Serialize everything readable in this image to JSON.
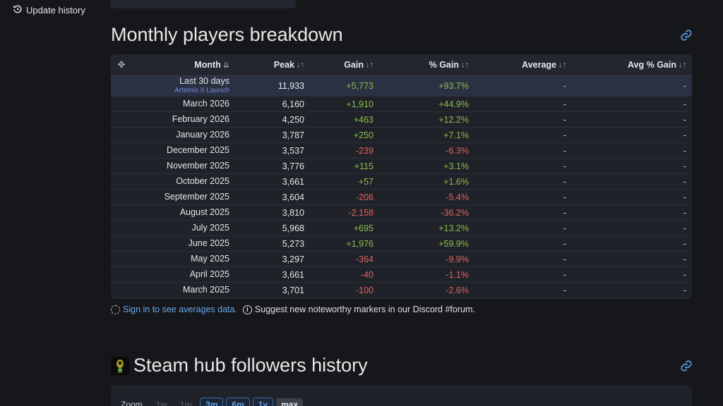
{
  "sidebar": {
    "update_history_label": "Update history"
  },
  "section1": {
    "title": "Monthly players breakdown",
    "columns": [
      "Month",
      "Peak",
      "Gain",
      "% Gain",
      "Average",
      "Avg % Gain"
    ],
    "rows": [
      {
        "month": "Last 30 days",
        "marker": "Artemis II Launch",
        "peak": "11,933",
        "gain": "+5,773",
        "pgain": "+93.7%",
        "avg": "-",
        "avgg": "-",
        "dir": "pos"
      },
      {
        "month": "March 2026",
        "peak": "6,160",
        "gain": "+1,910",
        "pgain": "+44.9%",
        "avg": "-",
        "avgg": "-",
        "dir": "pos"
      },
      {
        "month": "February 2026",
        "peak": "4,250",
        "gain": "+463",
        "pgain": "+12.2%",
        "avg": "-",
        "avgg": "-",
        "dir": "pos"
      },
      {
        "month": "January 2026",
        "peak": "3,787",
        "gain": "+250",
        "pgain": "+7.1%",
        "avg": "-",
        "avgg": "-",
        "dir": "pos"
      },
      {
        "month": "December 2025",
        "peak": "3,537",
        "gain": "-239",
        "pgain": "-6.3%",
        "avg": "-",
        "avgg": "-",
        "dir": "neg"
      },
      {
        "month": "November 2025",
        "peak": "3,776",
        "gain": "+115",
        "pgain": "+3.1%",
        "avg": "-",
        "avgg": "-",
        "dir": "pos"
      },
      {
        "month": "October 2025",
        "peak": "3,661",
        "gain": "+57",
        "pgain": "+1.6%",
        "avg": "-",
        "avgg": "-",
        "dir": "pos"
      },
      {
        "month": "September 2025",
        "peak": "3,604",
        "gain": "-206",
        "pgain": "-5.4%",
        "avg": "-",
        "avgg": "-",
        "dir": "neg"
      },
      {
        "month": "August 2025",
        "peak": "3,810",
        "gain": "-2,158",
        "pgain": "-36.2%",
        "avg": "-",
        "avgg": "-",
        "dir": "neg"
      },
      {
        "month": "July 2025",
        "peak": "5,968",
        "gain": "+695",
        "pgain": "+13.2%",
        "avg": "-",
        "avgg": "-",
        "dir": "pos"
      },
      {
        "month": "June 2025",
        "peak": "5,273",
        "gain": "+1,976",
        "pgain": "+59.9%",
        "avg": "-",
        "avgg": "-",
        "dir": "pos"
      },
      {
        "month": "May 2025",
        "peak": "3,297",
        "gain": "-364",
        "pgain": "-9.9%",
        "avg": "-",
        "avgg": "-",
        "dir": "neg"
      },
      {
        "month": "April 2025",
        "peak": "3,661",
        "gain": "-40",
        "pgain": "-1.1%",
        "avg": "-",
        "avgg": "-",
        "dir": "neg"
      },
      {
        "month": "March 2025",
        "peak": "3,701",
        "gain": "-100",
        "pgain": "-2.6%",
        "avg": "-",
        "avgg": "-",
        "dir": "neg"
      }
    ],
    "notes": {
      "signin_link": "Sign in to see averages data.",
      "suggest_text": "Suggest new noteworthy markers in our Discord #forum."
    }
  },
  "section2": {
    "title": "Steam hub followers history",
    "zoom_label": "Zoom",
    "zoom_buttons": [
      "1w",
      "1m",
      "3m",
      "6m",
      "1y",
      "max"
    ]
  },
  "colors": {
    "positive": "#8dbd4f",
    "negative": "#e0645c",
    "link": "#66a9f0",
    "marker": "#7c87d8"
  },
  "icons": [
    "history-icon",
    "link-icon",
    "drag-icon",
    "sort-icon",
    "dashed-circle-icon",
    "info-icon",
    "game-icon"
  ]
}
